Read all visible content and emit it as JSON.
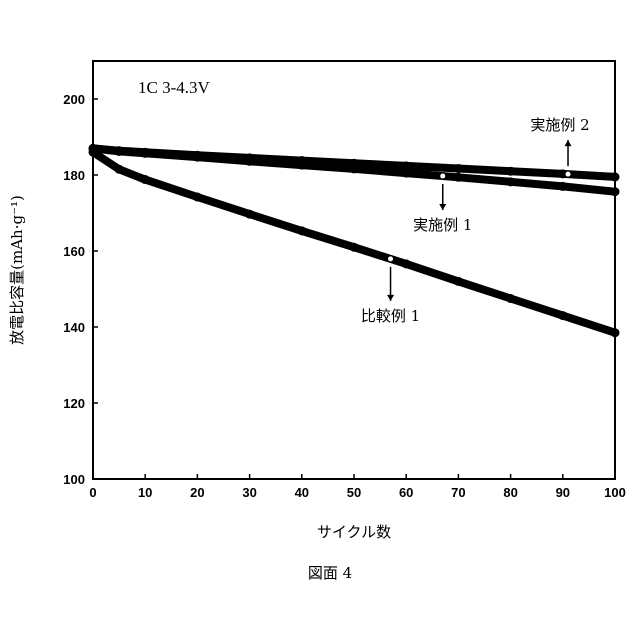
{
  "chart_data": {
    "type": "line",
    "condition_text": "1C  3-4.3V",
    "xlabel": "サイクル数",
    "ylabel": "放電比容量(mAh·g⁻¹)",
    "caption": "図面 4",
    "xlim": [
      0,
      100
    ],
    "ylim": [
      100,
      210
    ],
    "x_ticks": [
      0,
      10,
      20,
      30,
      40,
      50,
      60,
      70,
      80,
      90,
      100
    ],
    "y_ticks": [
      100,
      120,
      140,
      160,
      180,
      200
    ],
    "x": [
      0,
      5,
      10,
      20,
      30,
      40,
      50,
      60,
      70,
      80,
      90,
      100
    ],
    "series": [
      {
        "name": "実施例 2",
        "values": [
          187,
          186.4,
          186,
          185.2,
          184.5,
          183.8,
          183.1,
          182.4,
          181.7,
          181.0,
          180.3,
          179.5
        ]
      },
      {
        "name": "実施例 1",
        "values": [
          187,
          186.2,
          185.7,
          184.7,
          183.6,
          182.6,
          181.6,
          180.5,
          179.4,
          178.2,
          177.0,
          175.6
        ]
      },
      {
        "name": "比較例 1",
        "values": [
          186,
          181.5,
          178.8,
          174.2,
          169.7,
          165.3,
          161.0,
          156.6,
          152.0,
          147.5,
          143.0,
          138.5
        ]
      }
    ],
    "annotations": [
      {
        "label": "実施例 2",
        "series": "実施例 2",
        "x": 91,
        "arrow": "up"
      },
      {
        "label": "実施例 1",
        "series": "実施例 1",
        "x": 67,
        "arrow": "down"
      },
      {
        "label": "比較例 1",
        "series": "比較例 1",
        "x": 57,
        "arrow": "down"
      }
    ]
  }
}
